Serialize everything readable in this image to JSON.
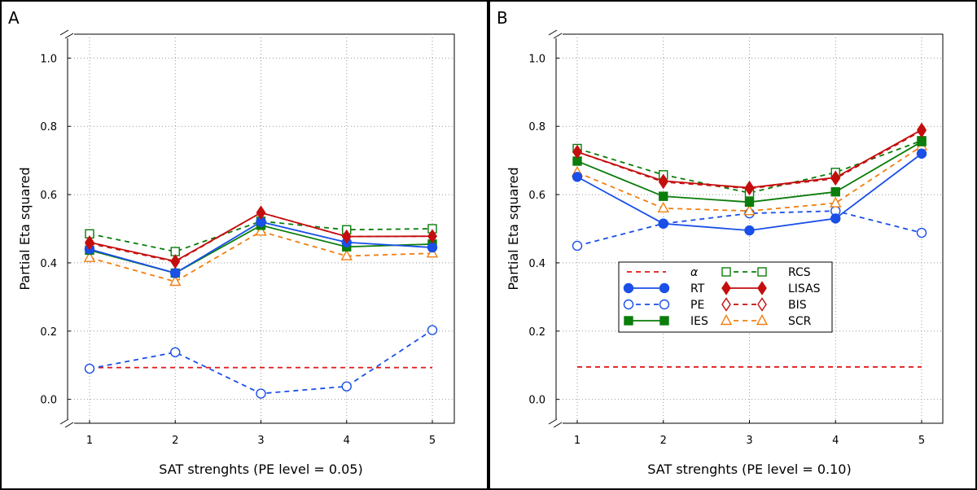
{
  "chart_data": [
    {
      "type": "line",
      "panel_label": "A",
      "xlabel": "SAT strenghts (PE level = 0.05)",
      "ylabel": "Partial Eta squared",
      "x": [
        1,
        2,
        3,
        4,
        5
      ],
      "xticks": [
        "1",
        "2",
        "3",
        "4",
        "5"
      ],
      "yticks": [
        "0.0",
        "0.2",
        "0.4",
        "0.6",
        "0.8",
        "1.0"
      ],
      "ylim": [
        -0.07,
        1.07
      ],
      "grid": true,
      "series": [
        {
          "name": "α",
          "values": [
            0.093,
            0.093,
            0.093,
            0.093,
            0.093
          ]
        },
        {
          "name": "RT",
          "values": [
            0.44,
            0.37,
            0.52,
            0.46,
            0.445
          ]
        },
        {
          "name": "PE",
          "values": [
            0.09,
            0.138,
            0.017,
            0.038,
            0.203
          ]
        },
        {
          "name": "IES",
          "values": [
            0.437,
            0.37,
            0.51,
            0.447,
            0.455
          ]
        },
        {
          "name": "RCS",
          "values": [
            0.485,
            0.433,
            0.522,
            0.497,
            0.5
          ]
        },
        {
          "name": "LISAS",
          "values": [
            0.46,
            0.405,
            0.547,
            0.477,
            0.478
          ]
        },
        {
          "name": "BIS",
          "values": [
            0.457,
            0.403,
            0.547,
            0.477,
            0.478
          ]
        },
        {
          "name": "SCR",
          "values": [
            0.415,
            0.345,
            0.492,
            0.42,
            0.428
          ]
        }
      ]
    },
    {
      "type": "line",
      "panel_label": "B",
      "xlabel": "SAT strenghts (PE level = 0.10)",
      "ylabel": "Partial Eta squared",
      "x": [
        1,
        2,
        3,
        4,
        5
      ],
      "xticks": [
        "1",
        "2",
        "3",
        "4",
        "5"
      ],
      "yticks": [
        "0.0",
        "0.2",
        "0.4",
        "0.6",
        "0.8",
        "1.0"
      ],
      "ylim": [
        -0.07,
        1.07
      ],
      "grid": true,
      "legend_position": "center",
      "series": [
        {
          "name": "α",
          "values": [
            0.095,
            0.095,
            0.095,
            0.095,
            0.095
          ]
        },
        {
          "name": "RT",
          "values": [
            0.652,
            0.515,
            0.495,
            0.53,
            0.72
          ]
        },
        {
          "name": "PE",
          "values": [
            0.45,
            0.515,
            0.545,
            0.552,
            0.488
          ]
        },
        {
          "name": "IES",
          "values": [
            0.698,
            0.595,
            0.578,
            0.608,
            0.755
          ]
        },
        {
          "name": "RCS",
          "values": [
            0.735,
            0.658,
            0.605,
            0.665,
            0.758
          ]
        },
        {
          "name": "LISAS",
          "values": [
            0.725,
            0.64,
            0.62,
            0.65,
            0.79
          ]
        },
        {
          "name": "BIS",
          "values": [
            0.725,
            0.637,
            0.618,
            0.647,
            0.787
          ]
        },
        {
          "name": "SCR",
          "values": [
            0.665,
            0.56,
            0.552,
            0.575,
            0.742
          ]
        }
      ]
    }
  ]
}
